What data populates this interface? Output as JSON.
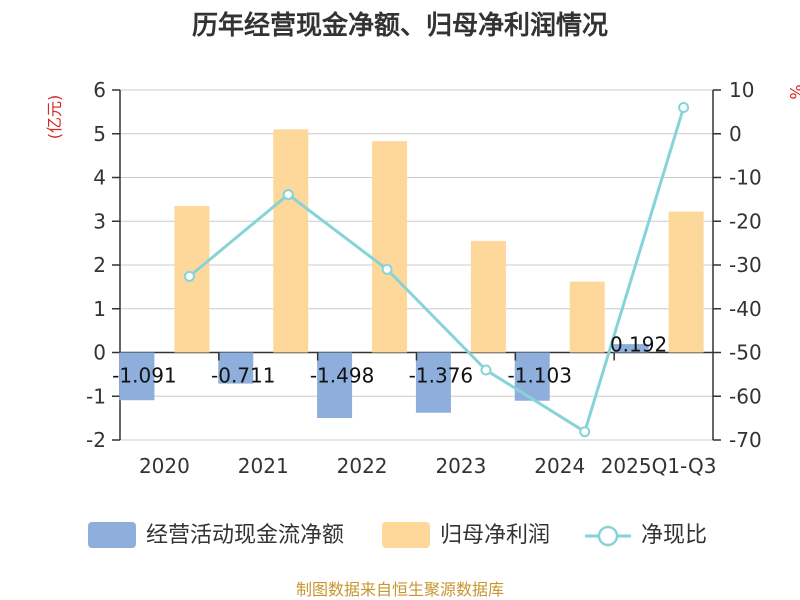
{
  "chart_data": {
    "type": "bar",
    "title": "历年经营现金净额、归母净利润情况",
    "categories": [
      "2020",
      "2021",
      "2022",
      "2023",
      "2024",
      "2025Q1-Q3"
    ],
    "series": [
      {
        "name": "经营活动现金流净额",
        "type": "bar",
        "axis": "left",
        "values": [
          -1.091,
          -0.711,
          -1.498,
          -1.376,
          -1.103,
          0.192
        ],
        "labels": [
          "-1.091",
          "-0.711",
          "-1.498",
          "-1.376",
          "-1.103",
          "0.192"
        ],
        "color": "#8eaedc"
      },
      {
        "name": "归母净利润",
        "type": "bar",
        "axis": "left",
        "values": [
          3.35,
          5.1,
          4.83,
          2.55,
          1.62,
          3.22
        ],
        "color": "#fdd89a"
      },
      {
        "name": "净现比",
        "type": "line",
        "axis": "right",
        "values": [
          -32.6,
          -13.9,
          -31.0,
          -54.0,
          -68.1,
          6.0
        ],
        "color": "#86d3d8"
      }
    ],
    "ylabel_left": "(亿元)",
    "ylabel_right": "%",
    "yticks_left": [
      "6",
      "5",
      "4",
      "3",
      "2",
      "1",
      "0",
      "-1",
      "-2"
    ],
    "yticks_right": [
      "10",
      "0",
      "-10",
      "-20",
      "-30",
      "-40",
      "-50",
      "-60",
      "-70"
    ],
    "ylim_left": [
      -2,
      6
    ],
    "ylim_right": [
      -70,
      10
    ],
    "grid": true,
    "legend_position": "bottom"
  },
  "source": "制图数据来自恒生聚源数据库"
}
